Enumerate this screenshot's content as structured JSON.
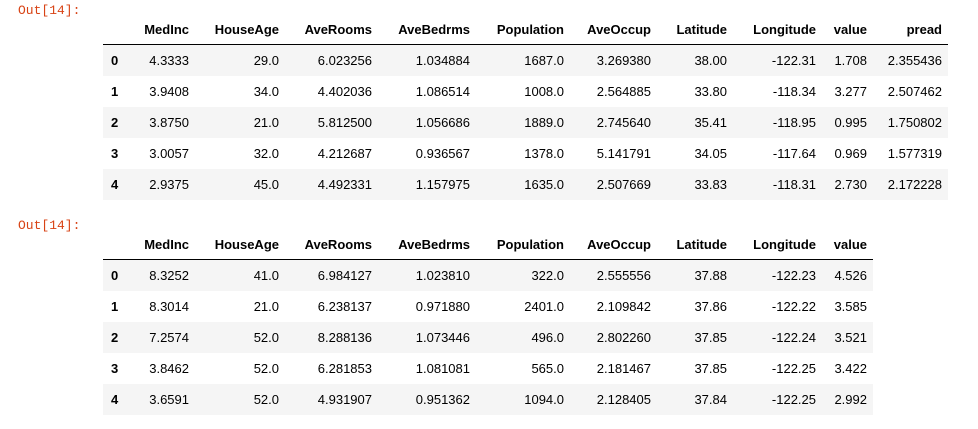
{
  "outputs": [
    {
      "prompt": "Out[14]:",
      "table": {
        "columns": [
          "MedInc",
          "HouseAge",
          "AveRooms",
          "AveBedrms",
          "Population",
          "AveOccup",
          "Latitude",
          "Longitude",
          "value",
          "pread"
        ],
        "index": [
          "0",
          "1",
          "2",
          "3",
          "4"
        ],
        "rows": [
          [
            "4.3333",
            "29.0",
            "6.023256",
            "1.034884",
            "1687.0",
            "3.269380",
            "38.00",
            "-122.31",
            "1.708",
            "2.355436"
          ],
          [
            "3.9408",
            "34.0",
            "4.402036",
            "1.086514",
            "1008.0",
            "2.564885",
            "33.80",
            "-118.34",
            "3.277",
            "2.507462"
          ],
          [
            "3.8750",
            "21.0",
            "5.812500",
            "1.056686",
            "1889.0",
            "2.745640",
            "35.41",
            "-118.95",
            "0.995",
            "1.750802"
          ],
          [
            "3.0057",
            "32.0",
            "4.212687",
            "0.936567",
            "1378.0",
            "5.141791",
            "34.05",
            "-117.64",
            "0.969",
            "1.577319"
          ],
          [
            "2.9375",
            "45.0",
            "4.492331",
            "1.157975",
            "1635.0",
            "2.507669",
            "33.83",
            "-118.31",
            "2.730",
            "2.172228"
          ]
        ]
      }
    },
    {
      "prompt": "Out[14]:",
      "table": {
        "columns": [
          "MedInc",
          "HouseAge",
          "AveRooms",
          "AveBedrms",
          "Population",
          "AveOccup",
          "Latitude",
          "Longitude",
          "value"
        ],
        "index": [
          "0",
          "1",
          "2",
          "3",
          "4"
        ],
        "rows": [
          [
            "8.3252",
            "41.0",
            "6.984127",
            "1.023810",
            "322.0",
            "2.555556",
            "37.88",
            "-122.23",
            "4.526"
          ],
          [
            "8.3014",
            "21.0",
            "6.238137",
            "0.971880",
            "2401.0",
            "2.109842",
            "37.86",
            "-122.22",
            "3.585"
          ],
          [
            "7.2574",
            "52.0",
            "8.288136",
            "1.073446",
            "496.0",
            "2.802260",
            "37.85",
            "-122.24",
            "3.521"
          ],
          [
            "3.8462",
            "52.0",
            "6.281853",
            "1.081081",
            "565.0",
            "2.181467",
            "37.85",
            "-122.25",
            "3.422"
          ],
          [
            "3.6591",
            "52.0",
            "4.931907",
            "0.951362",
            "1094.0",
            "2.128405",
            "37.84",
            "-122.25",
            "2.992"
          ]
        ]
      }
    }
  ]
}
